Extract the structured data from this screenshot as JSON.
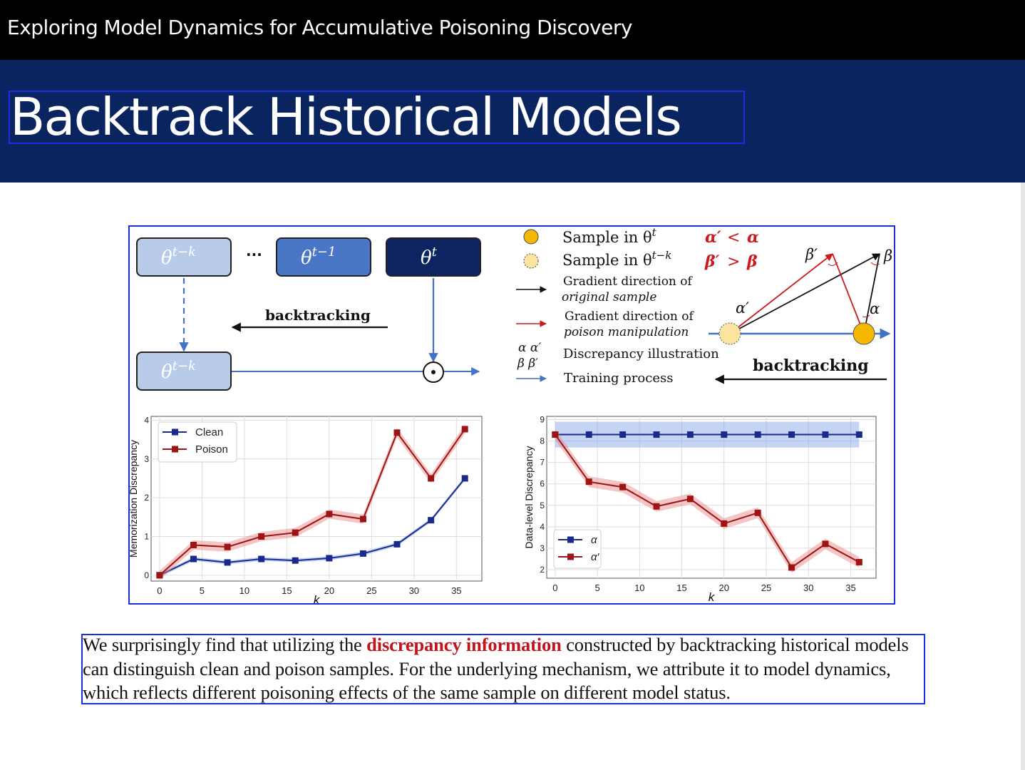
{
  "topbar": {
    "title": "Exploring Model Dynamics for Accumulative Poisoning Discovery"
  },
  "slide": {
    "title": "Backtrack Historical Models"
  },
  "diagram": {
    "models": {
      "theta_tk": "θ",
      "theta_tk_sup": "t−k",
      "dots": "···",
      "theta_t1": "θ",
      "theta_t1_sup": "t−1",
      "theta_t": "θ",
      "theta_t_sup": "t",
      "theta_tk2": "θ",
      "theta_tk2_sup": "t−k"
    },
    "backtracking_label": "backtracking",
    "legend": {
      "sample_t": "Sample in θ",
      "sample_t_sup": "t",
      "sample_tk": "Sample in θ",
      "sample_tk_sup": "t−k",
      "grad_orig_1": "Gradient direction of",
      "grad_orig_2": "original sample",
      "grad_poison_1": "Gradient direction of",
      "grad_poison_2": "poison manipulation",
      "greek_1": "α  α′",
      "greek_2": "β  β′",
      "discrepancy": "Discrepancy illustration",
      "training": "Training process"
    },
    "relations": {
      "r1_lhs": "α′",
      "r1_op": "<",
      "r1_rhs": "α",
      "r2_lhs": "β′",
      "r2_op": ">",
      "r2_rhs": "β"
    },
    "angles": {
      "beta_p": "β′",
      "beta": "β",
      "alpha_p": "α′",
      "alpha": "α"
    },
    "backtracking_label_2": "backtracking",
    "colors": {
      "sample_t": "#f5b800",
      "sample_tk": "#fbe3a0",
      "grad_orig": "#111111",
      "grad_poison": "#cc1a1a",
      "training": "#4472c4"
    }
  },
  "chart_data": [
    {
      "type": "line",
      "ylabel": "Memorization Discrepancy",
      "xlabel": "k",
      "xlim": [
        -1,
        38
      ],
      "ylim": [
        -0.15,
        4.1
      ],
      "xticks": [
        0,
        5,
        10,
        15,
        20,
        25,
        30,
        35
      ],
      "yticks": [
        0,
        1,
        2,
        3,
        4
      ],
      "grid": true,
      "legend_position": "top-left",
      "series": [
        {
          "name": "Clean",
          "color": "#1a2a8c",
          "x": [
            0,
            4,
            8,
            12,
            16,
            20,
            24,
            28,
            32,
            36
          ],
          "values": [
            0.0,
            0.42,
            0.33,
            0.42,
            0.38,
            0.44,
            0.56,
            0.8,
            1.42,
            2.5
          ],
          "band": 0.05
        },
        {
          "name": "Poison",
          "color": "#9c1414",
          "x": [
            0,
            4,
            8,
            12,
            16,
            20,
            24,
            28,
            32,
            36
          ],
          "values": [
            0.0,
            0.78,
            0.73,
            1.0,
            1.1,
            1.58,
            1.45,
            3.68,
            2.5,
            3.77
          ],
          "band": 0.12
        }
      ]
    },
    {
      "type": "line",
      "ylabel": "Data-level Discrepancy",
      "xlabel": "k",
      "xlim": [
        -1,
        38
      ],
      "ylim": [
        1.6,
        9.15
      ],
      "xticks": [
        0,
        5,
        10,
        15,
        20,
        25,
        30,
        35
      ],
      "yticks": [
        2,
        3,
        4,
        5,
        6,
        7,
        8,
        9
      ],
      "grid": true,
      "legend_position": "bottom-left",
      "series": [
        {
          "name": "α",
          "color": "#1a2a8c",
          "x": [
            0,
            4,
            8,
            12,
            16,
            20,
            24,
            28,
            32,
            36
          ],
          "values": [
            8.3,
            8.3,
            8.3,
            8.3,
            8.3,
            8.3,
            8.3,
            8.3,
            8.3,
            8.3
          ],
          "band": 0.6
        },
        {
          "name": "α′",
          "color": "#9c1414",
          "x": [
            0,
            4,
            8,
            12,
            16,
            20,
            24,
            28,
            32,
            36
          ],
          "values": [
            8.3,
            6.1,
            5.85,
            4.95,
            5.3,
            4.15,
            4.65,
            2.1,
            3.2,
            2.35
          ],
          "band": 0.25
        }
      ]
    }
  ],
  "caption": {
    "part1": "We surprisingly find that utilizing the ",
    "highlight": "discrepancy information",
    "part2": " constructed by backtracking historical models can distinguish clean and poison samples. For the underlying mechanism, we attribute it to model dynamics, which reflects different poisoning effects of the same sample on different model status."
  }
}
